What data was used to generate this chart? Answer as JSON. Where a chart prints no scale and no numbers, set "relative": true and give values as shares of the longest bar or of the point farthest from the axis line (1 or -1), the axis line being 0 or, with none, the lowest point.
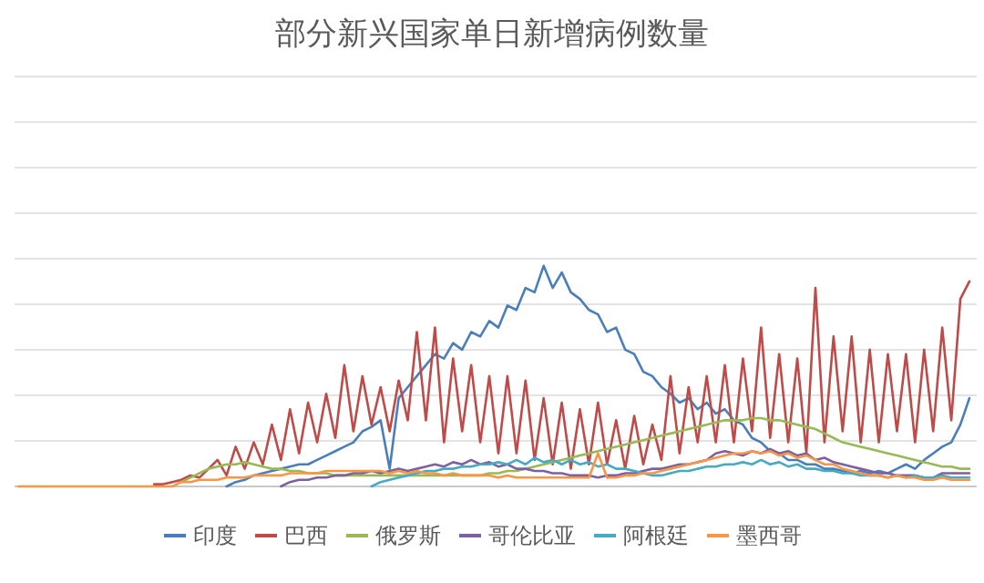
{
  "chart_data": {
    "type": "line",
    "title": "部分新兴国家单日新增病例数量",
    "relative": true,
    "grid": "y",
    "legend": "bottom",
    "marker": "none",
    "line_style": "solid",
    "categories": [
      null,
      null,
      null,
      null,
      null,
      null,
      null,
      null,
      null,
      null,
      null,
      null,
      null,
      null,
      null,
      null,
      null,
      null,
      null,
      null,
      null,
      null,
      null,
      null,
      null,
      null,
      null,
      null,
      null,
      null,
      null,
      null,
      null,
      null,
      null,
      null,
      null,
      null,
      null,
      null,
      null,
      null,
      null,
      null,
      null,
      null,
      null,
      null,
      null,
      null,
      null,
      null,
      null,
      null,
      null,
      null,
      null,
      null,
      null,
      null,
      null,
      null,
      null,
      null,
      null,
      null,
      null,
      null,
      null,
      null,
      null,
      null,
      null,
      null,
      null,
      null,
      null,
      null,
      null,
      null,
      null,
      null,
      null,
      null,
      null,
      null,
      null,
      null,
      null,
      null,
      null,
      null,
      null,
      null,
      null,
      null,
      null,
      null,
      null,
      null,
      null,
      null,
      null,
      null,
      null,
      null
    ],
    "series": [
      {
        "name": "印度",
        "color": "#4a7ebb",
        "values": [
          null,
          null,
          null,
          null,
          null,
          null,
          null,
          null,
          null,
          null,
          null,
          null,
          null,
          null,
          null,
          null,
          null,
          null,
          null,
          null,
          null,
          null,
          null,
          0,
          0.02,
          0.03,
          0.05,
          0.06,
          0.07,
          0.08,
          0.09,
          0.1,
          0.1,
          0.12,
          0.14,
          0.16,
          0.18,
          0.2,
          0.25,
          0.27,
          0.3,
          0.08,
          0.4,
          0.45,
          0.5,
          0.55,
          0.6,
          0.58,
          0.65,
          0.62,
          0.7,
          0.68,
          0.75,
          0.72,
          0.82,
          0.8,
          0.9,
          0.88,
          1,
          0.9,
          0.97,
          0.88,
          0.85,
          0.8,
          0.78,
          0.7,
          0.72,
          0.62,
          0.6,
          0.52,
          0.5,
          0.45,
          0.42,
          0.38,
          0.4,
          0.35,
          0.38,
          0.33,
          0.35,
          0.3,
          0.28,
          0.22,
          0.2,
          0.16,
          0.15,
          0.12,
          0.12,
          0.1,
          0.1,
          0.08,
          0.08,
          0.07,
          0.06,
          0.07,
          0.06,
          0.07,
          0.06,
          0.08,
          0.1,
          0.08,
          0.12,
          0.15,
          0.18,
          0.2,
          0.28,
          0.4
        ]
      },
      {
        "name": "巴西",
        "color": "#be4b48",
        "values": [
          null,
          null,
          null,
          null,
          null,
          null,
          null,
          null,
          null,
          null,
          null,
          null,
          null,
          null,
          null,
          0.01,
          0.01,
          0.02,
          0.03,
          0.05,
          0.04,
          0.08,
          0.12,
          0.05,
          0.18,
          0.08,
          0.2,
          0.1,
          0.28,
          0.12,
          0.35,
          0.15,
          0.38,
          0.2,
          0.42,
          0.22,
          0.55,
          0.25,
          0.5,
          0.28,
          0.45,
          0.25,
          0.48,
          0.3,
          0.7,
          0.3,
          0.72,
          0.2,
          0.58,
          0.25,
          0.55,
          0.2,
          0.5,
          0.15,
          0.5,
          0.15,
          0.48,
          0.12,
          0.4,
          0.1,
          0.38,
          0.08,
          0.35,
          0.1,
          0.38,
          0.1,
          0.3,
          0.08,
          0.32,
          0.1,
          0.28,
          0.12,
          0.5,
          0.15,
          0.45,
          0.2,
          0.5,
          0.2,
          0.55,
          0.2,
          0.58,
          0.25,
          0.72,
          0.22,
          0.6,
          0.2,
          0.58,
          0.15,
          0.9,
          0.2,
          0.68,
          0.25,
          0.68,
          0.2,
          0.62,
          0.2,
          0.6,
          0.25,
          0.6,
          0.2,
          0.62,
          0.25,
          0.72,
          0.3,
          0.85,
          0.93
        ]
      },
      {
        "name": "俄罗斯",
        "color": "#98b954",
        "values": [
          null,
          null,
          null,
          null,
          null,
          null,
          null,
          null,
          null,
          null,
          null,
          null,
          null,
          null,
          null,
          null,
          null,
          null,
          0.02,
          0.04,
          0.06,
          0.08,
          0.09,
          0.1,
          0.1,
          0.11,
          0.1,
          0.09,
          0.08,
          0.08,
          0.07,
          0.07,
          0.06,
          0.06,
          0.06,
          0.05,
          0.05,
          0.05,
          0.05,
          0.05,
          0.05,
          0.05,
          0.05,
          0.05,
          0.05,
          0.05,
          0.05,
          0.05,
          0.05,
          0.05,
          0.05,
          0.05,
          0.06,
          0.06,
          0.07,
          0.07,
          0.08,
          0.09,
          0.1,
          0.11,
          0.12,
          0.13,
          0.14,
          0.15,
          0.16,
          0.17,
          0.18,
          0.19,
          0.2,
          0.21,
          0.22,
          0.23,
          0.24,
          0.25,
          0.26,
          0.27,
          0.28,
          0.29,
          0.3,
          0.3,
          0.3,
          0.31,
          0.31,
          0.3,
          0.3,
          0.29,
          0.28,
          0.27,
          0.26,
          0.24,
          0.22,
          0.2,
          0.19,
          0.18,
          0.17,
          0.16,
          0.15,
          0.14,
          0.13,
          0.12,
          0.11,
          0.1,
          0.09,
          0.09,
          0.08,
          0.08
        ]
      },
      {
        "name": "哥伦比亚",
        "color": "#7d60a0",
        "values": [
          null,
          null,
          null,
          null,
          null,
          null,
          null,
          null,
          null,
          null,
          null,
          null,
          null,
          null,
          null,
          null,
          null,
          null,
          null,
          null,
          null,
          null,
          null,
          null,
          null,
          null,
          null,
          null,
          null,
          0,
          0.02,
          0.03,
          0.03,
          0.04,
          0.04,
          0.05,
          0.05,
          0.06,
          0.06,
          0.07,
          0.06,
          0.07,
          0.08,
          0.07,
          0.08,
          0.09,
          0.1,
          0.09,
          0.11,
          0.1,
          0.12,
          0.1,
          0.11,
          0.09,
          0.1,
          0.08,
          0.08,
          0.07,
          0.07,
          0.06,
          0.06,
          0.05,
          0.05,
          0.05,
          0.04,
          0.05,
          0.05,
          0.06,
          0.06,
          0.07,
          0.08,
          0.08,
          0.09,
          0.1,
          0.1,
          0.11,
          0.12,
          0.15,
          0.16,
          0.15,
          0.14,
          0.16,
          0.15,
          0.17,
          0.15,
          0.16,
          0.14,
          0.15,
          0.12,
          0.13,
          0.11,
          0.1,
          0.09,
          0.08,
          0.07,
          0.06,
          0.06,
          0.05,
          0.05,
          0.05,
          0.04,
          0.04,
          0.06,
          0.06,
          0.06,
          0.06
        ]
      },
      {
        "name": "阿根廷",
        "color": "#46aac5",
        "values": [
          null,
          null,
          null,
          null,
          null,
          null,
          null,
          null,
          null,
          null,
          null,
          null,
          null,
          null,
          null,
          null,
          null,
          null,
          null,
          null,
          null,
          null,
          null,
          null,
          null,
          null,
          null,
          null,
          null,
          null,
          null,
          null,
          null,
          null,
          null,
          null,
          null,
          null,
          null,
          0,
          0.02,
          0.03,
          0.04,
          0.05,
          0.06,
          0.07,
          0.07,
          0.08,
          0.08,
          0.09,
          0.09,
          0.1,
          0.1,
          0.11,
          0.1,
          0.12,
          0.1,
          0.13,
          0.11,
          0.12,
          0.1,
          0.12,
          0.1,
          0.11,
          0.09,
          0.1,
          0.08,
          0.08,
          0.07,
          0.06,
          0.05,
          0.05,
          0.06,
          0.07,
          0.07,
          0.08,
          0.09,
          0.09,
          0.1,
          0.1,
          0.11,
          0.1,
          0.12,
          0.1,
          0.11,
          0.09,
          0.1,
          0.08,
          0.08,
          0.07,
          0.07,
          0.06,
          0.06,
          0.05,
          0.05,
          0.05,
          0.04,
          0.05,
          0.04,
          0.05,
          0.04,
          0.04,
          0.05,
          0.04,
          0.04,
          0.04
        ]
      },
      {
        "name": "墨西哥",
        "color": "#f79646",
        "values": [
          0,
          0,
          0,
          0,
          0,
          0,
          0,
          0,
          0,
          0,
          0,
          0,
          0,
          0,
          0,
          0,
          0,
          0,
          0.02,
          0.02,
          0.03,
          0.03,
          0.03,
          0.04,
          0.04,
          0.04,
          0.05,
          0.05,
          0.05,
          0.05,
          0.06,
          0.06,
          0.06,
          0.06,
          0.07,
          0.07,
          0.07,
          0.07,
          0.07,
          0.07,
          0.07,
          0.06,
          0.07,
          0.06,
          0.07,
          0.06,
          0.06,
          0.05,
          0.06,
          0.05,
          0.05,
          0.05,
          0.05,
          0.04,
          0.05,
          0.04,
          0.04,
          0.04,
          0.04,
          0.04,
          0.04,
          0.04,
          0.04,
          0.04,
          0.15,
          0.04,
          0.04,
          0.05,
          0.05,
          0.06,
          0.06,
          0.07,
          0.08,
          0.09,
          0.1,
          0.11,
          0.12,
          0.13,
          0.14,
          0.15,
          0.15,
          0.16,
          0.15,
          0.16,
          0.14,
          0.15,
          0.13,
          0.14,
          0.12,
          0.1,
          0.1,
          0.08,
          0.07,
          0.06,
          0.05,
          0.05,
          0.04,
          0.05,
          0.04,
          0.04,
          0.03,
          0.03,
          0.04,
          0.03,
          0.03,
          0.03
        ]
      }
    ]
  }
}
